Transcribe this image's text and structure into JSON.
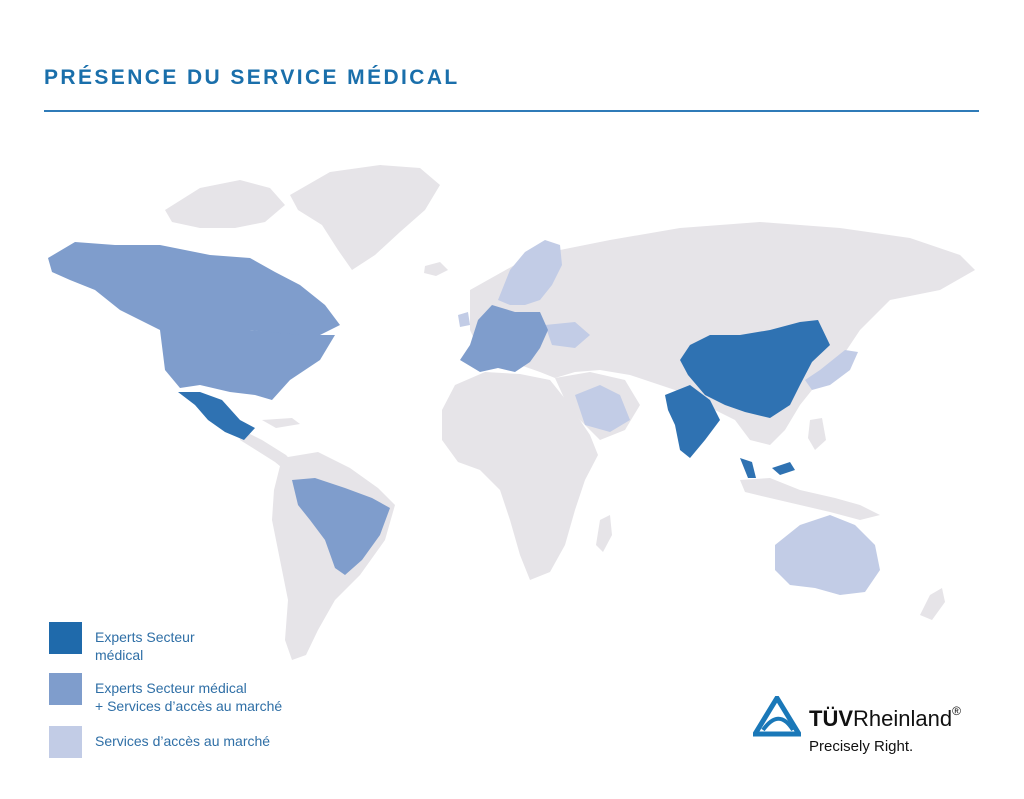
{
  "title": "PRÉSENCE DU SERVICE MÉDICAL",
  "colors": {
    "experts": "#2f72b2",
    "experts_plus": "#7f9dcc",
    "market_access": "#c2cce6",
    "land": "#e6e4e8",
    "accent": "#1a6fab"
  },
  "legend": [
    {
      "label": "Experts Secteur\nmédical",
      "color_key": "experts"
    },
    {
      "label": "Experts Secteur médical\n+  Services d’accès au marché",
      "color_key": "experts_plus"
    },
    {
      "label": "Services d’accès au marché",
      "color_key": "market_access"
    }
  ],
  "logo": {
    "brand_bold": "TÜV",
    "brand_regular": "Rheinland",
    "registered": "®",
    "tagline": "Precisely Right."
  },
  "regions": {
    "experts": [
      "China",
      "India",
      "Mexico",
      "Malaysia"
    ],
    "experts_plus": [
      "Canada",
      "USA",
      "Brazil",
      "Germany",
      "France",
      "Poland",
      "Italy",
      "Austria",
      "Spain",
      "UK",
      "Uruguay"
    ],
    "market_access": [
      "Sweden",
      "Norway",
      "Finland",
      "Ireland",
      "Portugal",
      "Ukraine",
      "Romania",
      "Saudi Arabia",
      "Japan",
      "Korea",
      "Australia"
    ]
  }
}
